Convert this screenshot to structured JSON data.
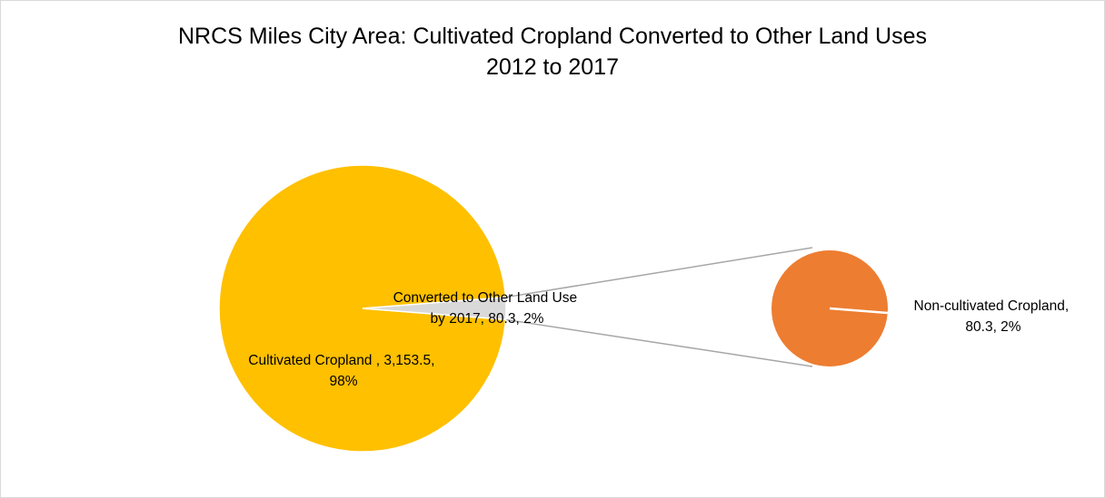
{
  "chart_data": {
    "type": "pie",
    "subtype": "pie-of-pie",
    "title": [
      "NRCS Miles City Area: Cultivated Cropland Converted to Other Land Uses",
      "2012 to 2017"
    ],
    "primary_pie": {
      "slices": [
        {
          "label_lines": [
            "Cultivated Cropland , 3,153.5,",
            "98%"
          ],
          "value": 3153.5,
          "percent": 98,
          "color": "#FFC000"
        },
        {
          "label_lines": [
            "Converted to Other Land Use",
            "by 2017, 80.3, 2%"
          ],
          "value": 80.3,
          "percent": 2,
          "color": "#D9D9D9"
        }
      ]
    },
    "secondary_pie": {
      "slices": [
        {
          "label_lines": [
            "Non-cultivated Cropland,",
            "80.3, 2%"
          ],
          "value": 80.3,
          "percent": 2,
          "color": "#ED7D31"
        }
      ]
    },
    "connector_color": "#A6A6A6",
    "legend": "none"
  }
}
